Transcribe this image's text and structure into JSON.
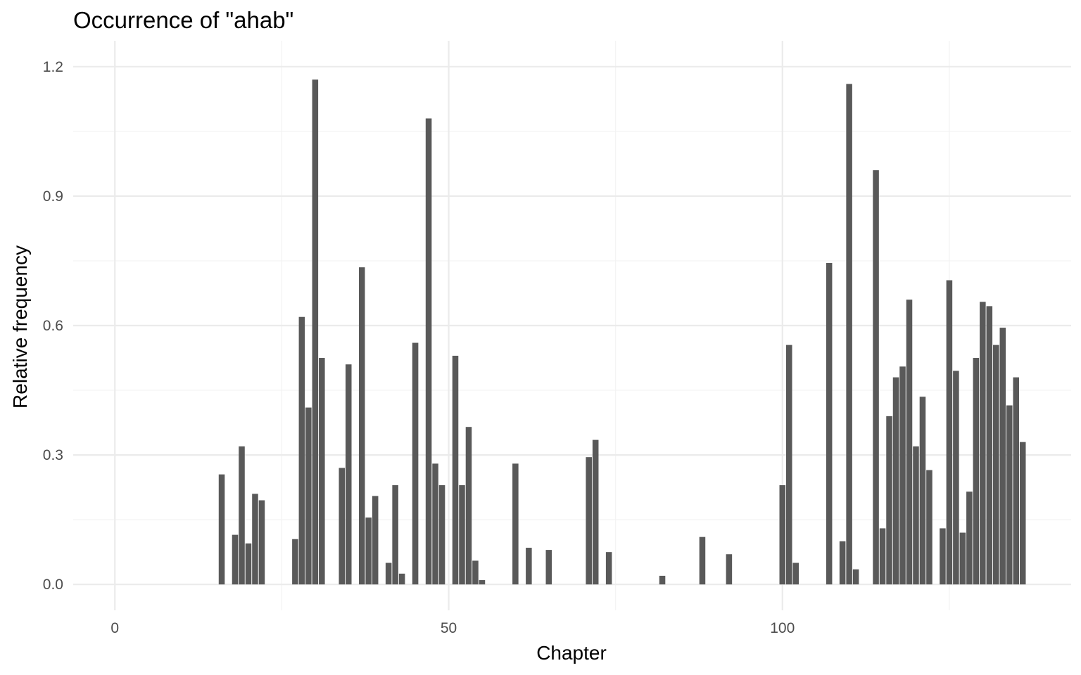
{
  "chart_data": {
    "type": "bar",
    "title": "Occurrence of \"ahab\"",
    "xlabel": "Chapter",
    "ylabel": "Relative frequency",
    "xlim": [
      -6.25,
      143.25
    ],
    "ylim": [
      -0.06,
      1.26
    ],
    "x_ticks": [
      0,
      50,
      100
    ],
    "x_tick_labels": [
      "0",
      "50",
      "100"
    ],
    "x_minor_ticks": [
      25,
      75,
      125
    ],
    "y_ticks": [
      0.0,
      0.3,
      0.6,
      0.9,
      1.2
    ],
    "y_tick_labels": [
      "0.0",
      "0.3",
      "0.6",
      "0.9",
      "1.2"
    ],
    "y_minor_ticks": [
      0.15,
      0.45,
      0.75,
      1.05
    ],
    "grid": true,
    "bar_color": "#595959",
    "x": [
      16,
      18,
      19,
      20,
      21,
      22,
      27,
      28,
      29,
      30,
      31,
      34,
      35,
      37,
      38,
      39,
      41,
      42,
      43,
      45,
      47,
      48,
      49,
      51,
      52,
      53,
      54,
      55,
      60,
      62,
      65,
      71,
      72,
      74,
      82,
      88,
      92,
      100,
      101,
      102,
      107,
      109,
      110,
      111,
      114,
      115,
      116,
      117,
      118,
      119,
      120,
      121,
      122,
      124,
      125,
      126,
      127,
      128,
      129,
      130,
      131,
      132,
      133,
      134,
      135,
      136
    ],
    "values": [
      0.255,
      0.115,
      0.32,
      0.095,
      0.21,
      0.195,
      0.105,
      0.62,
      0.41,
      1.17,
      0.525,
      0.27,
      0.51,
      0.735,
      0.155,
      0.205,
      0.05,
      0.23,
      0.025,
      0.56,
      1.08,
      0.28,
      0.23,
      0.53,
      0.23,
      0.365,
      0.055,
      0.01,
      0.28,
      0.085,
      0.08,
      0.295,
      0.335,
      0.075,
      0.02,
      0.11,
      0.07,
      0.23,
      0.555,
      0.05,
      0.745,
      0.1,
      1.16,
      0.035,
      0.96,
      0.13,
      0.39,
      0.48,
      0.505,
      0.66,
      0.32,
      0.435,
      0.265,
      0.13,
      0.705,
      0.495,
      0.12,
      0.215,
      0.525,
      0.655,
      0.645,
      0.555,
      0.595,
      0.415,
      0.48,
      0.33
    ]
  }
}
